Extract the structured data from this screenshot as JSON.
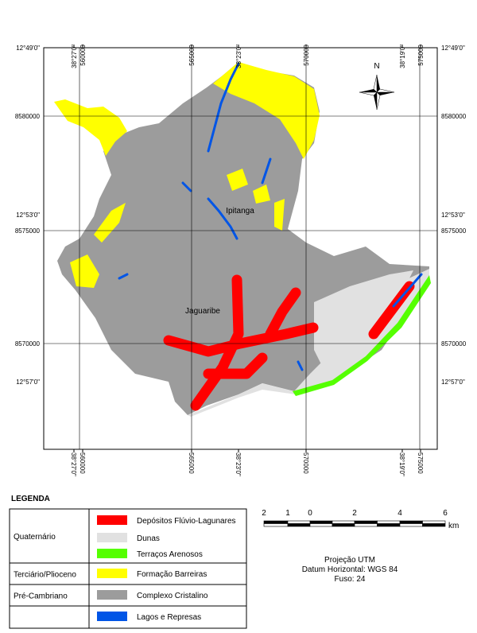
{
  "map": {
    "grid_labels": {
      "top": [
        "38°27'0\"",
        "560000",
        "565000",
        "38°23'0\"",
        "570000",
        "38°19'0\"",
        "575000"
      ],
      "bottom": [
        "38°27'0\"",
        "560000",
        "565000",
        "38°23'0\"",
        "570000",
        "38°19'0\"",
        "575000"
      ],
      "left": [
        "12°49'0\"",
        "8580000",
        "12°53'0\"",
        "8575000",
        "8570000",
        "12°57'0\""
      ],
      "right": [
        "12°49'0\"",
        "8580000",
        "12°53'0\"",
        "8575000",
        "8570000",
        "12°57'0\""
      ]
    },
    "places": [
      "Ipitanga",
      "Jaguaribe"
    ],
    "north": "N"
  },
  "legend": {
    "title": "LEGENDA",
    "groups": [
      "Quaternário",
      "Terciário/Plioceno",
      "Pré-Cambriano"
    ],
    "items": [
      {
        "label": "Depósitos Flúvio-Lagunares",
        "color": "#ff0000"
      },
      {
        "label": "Dunas",
        "color": "#e1e1e1"
      },
      {
        "label": "Terraços Arenosos",
        "color": "#55ff00"
      },
      {
        "label": "Formação Barreiras",
        "color": "#ffff00"
      },
      {
        "label": "Complexo Cristalino",
        "color": "#9c9c9c"
      },
      {
        "label": "Lagos e Represas",
        "color": "#0055e6"
      }
    ]
  },
  "scale": {
    "ticks": [
      "2",
      "1",
      "0",
      "2",
      "4",
      "6"
    ],
    "unit": "km"
  },
  "projection": [
    "Projeção UTM",
    "Datum Horizontal: WGS 84",
    "Fuso: 24"
  ]
}
